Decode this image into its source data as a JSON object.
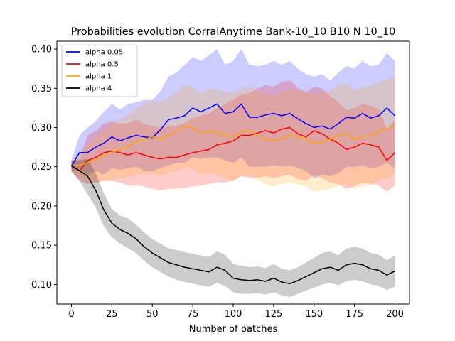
{
  "chart_data": {
    "type": "line",
    "title": "Probabilities evolution CorralAnytime Bank-10_10 B10 N 10_10",
    "xlabel": "Number of batches",
    "ylabel": "",
    "xlim": [
      -9,
      209
    ],
    "ylim": [
      0.075,
      0.41
    ],
    "xticks": [
      0,
      25,
      50,
      75,
      100,
      125,
      150,
      175,
      200
    ],
    "yticks": [
      0.1,
      0.15,
      0.2,
      0.25,
      0.3,
      0.35,
      0.4
    ],
    "xtick_labels": [
      "0",
      "25",
      "50",
      "75",
      "100",
      "125",
      "150",
      "175",
      "200"
    ],
    "ytick_labels": [
      "0.10",
      "0.15",
      "0.20",
      "0.25",
      "0.30",
      "0.35",
      "0.40"
    ],
    "legend_position": "top-left",
    "grid": false,
    "series": [
      {
        "name": "alpha 0.05",
        "color": "#0000ff",
        "fill": "rgba(0,0,255,0.2)",
        "x": [
          0,
          5,
          10,
          15,
          20,
          25,
          30,
          35,
          40,
          45,
          50,
          55,
          60,
          65,
          70,
          75,
          80,
          85,
          90,
          95,
          100,
          105,
          110,
          115,
          120,
          125,
          130,
          135,
          140,
          145,
          150,
          155,
          160,
          165,
          170,
          175,
          180,
          185,
          190,
          195,
          200
        ],
        "y": [
          0.251,
          0.268,
          0.268,
          0.275,
          0.28,
          0.288,
          0.283,
          0.287,
          0.29,
          0.288,
          0.287,
          0.297,
          0.31,
          0.312,
          0.315,
          0.325,
          0.32,
          0.325,
          0.33,
          0.318,
          0.32,
          0.33,
          0.313,
          0.313,
          0.316,
          0.318,
          0.315,
          0.318,
          0.311,
          0.305,
          0.3,
          0.302,
          0.298,
          0.305,
          0.313,
          0.312,
          0.318,
          0.312,
          0.315,
          0.325,
          0.315
        ],
        "lower": [
          0.244,
          0.248,
          0.24,
          0.245,
          0.24,
          0.248,
          0.246,
          0.248,
          0.25,
          0.245,
          0.245,
          0.248,
          0.252,
          0.255,
          0.255,
          0.262,
          0.26,
          0.262,
          0.262,
          0.258,
          0.255,
          0.262,
          0.25,
          0.25,
          0.25,
          0.252,
          0.25,
          0.252,
          0.248,
          0.245,
          0.235,
          0.24,
          0.238,
          0.242,
          0.25,
          0.25,
          0.252,
          0.248,
          0.25,
          0.255,
          0.248
        ],
        "upper": [
          0.258,
          0.29,
          0.3,
          0.308,
          0.32,
          0.33,
          0.323,
          0.33,
          0.332,
          0.335,
          0.335,
          0.346,
          0.365,
          0.37,
          0.38,
          0.39,
          0.385,
          0.392,
          0.4,
          0.38,
          0.385,
          0.4,
          0.38,
          0.378,
          0.38,
          0.385,
          0.38,
          0.385,
          0.375,
          0.368,
          0.365,
          0.368,
          0.36,
          0.37,
          0.378,
          0.375,
          0.385,
          0.378,
          0.38,
          0.395,
          0.385
        ]
      },
      {
        "name": "alpha 0.5",
        "color": "#ff0000",
        "fill": "rgba(255,0,0,0.2)",
        "x": [
          0,
          5,
          10,
          15,
          20,
          25,
          30,
          35,
          40,
          45,
          50,
          55,
          60,
          65,
          70,
          75,
          80,
          85,
          90,
          95,
          100,
          105,
          110,
          115,
          120,
          125,
          130,
          135,
          140,
          145,
          150,
          155,
          160,
          165,
          170,
          175,
          180,
          185,
          190,
          195,
          200
        ],
        "y": [
          0.251,
          0.245,
          0.258,
          0.262,
          0.268,
          0.27,
          0.268,
          0.265,
          0.268,
          0.265,
          0.262,
          0.26,
          0.262,
          0.262,
          0.265,
          0.268,
          0.27,
          0.272,
          0.278,
          0.28,
          0.283,
          0.29,
          0.29,
          0.293,
          0.296,
          0.293,
          0.298,
          0.3,
          0.292,
          0.288,
          0.296,
          0.292,
          0.285,
          0.28,
          0.272,
          0.275,
          0.28,
          0.278,
          0.275,
          0.258,
          0.268
        ],
        "lower": [
          0.244,
          0.232,
          0.228,
          0.23,
          0.232,
          0.232,
          0.23,
          0.226,
          0.226,
          0.225,
          0.222,
          0.22,
          0.222,
          0.222,
          0.223,
          0.225,
          0.226,
          0.228,
          0.23,
          0.23,
          0.232,
          0.238,
          0.236,
          0.236,
          0.238,
          0.235,
          0.238,
          0.24,
          0.234,
          0.232,
          0.24,
          0.235,
          0.23,
          0.228,
          0.222,
          0.225,
          0.23,
          0.228,
          0.226,
          0.218,
          0.226
        ],
        "upper": [
          0.258,
          0.26,
          0.29,
          0.296,
          0.305,
          0.308,
          0.305,
          0.305,
          0.31,
          0.305,
          0.302,
          0.3,
          0.302,
          0.302,
          0.306,
          0.312,
          0.315,
          0.318,
          0.325,
          0.33,
          0.335,
          0.342,
          0.344,
          0.35,
          0.354,
          0.352,
          0.358,
          0.36,
          0.35,
          0.345,
          0.352,
          0.35,
          0.34,
          0.332,
          0.322,
          0.325,
          0.33,
          0.328,
          0.324,
          0.298,
          0.31
        ]
      },
      {
        "name": "alpha 1",
        "color": "#ffa500",
        "fill": "rgba(255,165,0,0.2)",
        "x": [
          0,
          5,
          10,
          15,
          20,
          25,
          30,
          35,
          40,
          45,
          50,
          55,
          60,
          65,
          70,
          75,
          80,
          85,
          90,
          95,
          100,
          105,
          110,
          115,
          120,
          125,
          130,
          135,
          140,
          145,
          150,
          155,
          160,
          165,
          170,
          175,
          180,
          185,
          190,
          195,
          200
        ],
        "y": [
          0.251,
          0.252,
          0.255,
          0.258,
          0.265,
          0.268,
          0.272,
          0.276,
          0.282,
          0.285,
          0.288,
          0.285,
          0.29,
          0.295,
          0.302,
          0.3,
          0.292,
          0.296,
          0.294,
          0.29,
          0.288,
          0.294,
          0.296,
          0.29,
          0.285,
          0.283,
          0.286,
          0.29,
          0.288,
          0.285,
          0.28,
          0.282,
          0.285,
          0.29,
          0.292,
          0.285,
          0.288,
          0.29,
          0.295,
          0.298,
          0.302
        ],
        "lower": [
          0.244,
          0.238,
          0.232,
          0.23,
          0.232,
          0.232,
          0.235,
          0.236,
          0.24,
          0.24,
          0.242,
          0.238,
          0.242,
          0.245,
          0.25,
          0.248,
          0.24,
          0.242,
          0.24,
          0.235,
          0.232,
          0.238,
          0.24,
          0.233,
          0.228,
          0.225,
          0.228,
          0.23,
          0.228,
          0.225,
          0.218,
          0.22,
          0.222,
          0.226,
          0.228,
          0.222,
          0.225,
          0.227,
          0.232,
          0.235,
          0.24
        ],
        "upper": [
          0.258,
          0.266,
          0.278,
          0.286,
          0.298,
          0.304,
          0.31,
          0.316,
          0.324,
          0.33,
          0.334,
          0.332,
          0.338,
          0.345,
          0.354,
          0.352,
          0.344,
          0.35,
          0.348,
          0.345,
          0.344,
          0.35,
          0.352,
          0.347,
          0.342,
          0.341,
          0.344,
          0.35,
          0.348,
          0.345,
          0.342,
          0.344,
          0.348,
          0.354,
          0.356,
          0.348,
          0.351,
          0.353,
          0.358,
          0.361,
          0.364
        ]
      },
      {
        "name": "alpha 4",
        "color": "#000000",
        "fill": "rgba(0,0,0,0.2)",
        "x": [
          0,
          5,
          10,
          15,
          20,
          25,
          30,
          35,
          40,
          45,
          50,
          55,
          60,
          65,
          70,
          75,
          80,
          85,
          90,
          95,
          100,
          105,
          110,
          115,
          120,
          125,
          130,
          135,
          140,
          145,
          150,
          155,
          160,
          165,
          170,
          175,
          180,
          185,
          190,
          195,
          200
        ],
        "y": [
          0.251,
          0.245,
          0.238,
          0.22,
          0.195,
          0.178,
          0.17,
          0.165,
          0.158,
          0.148,
          0.14,
          0.134,
          0.128,
          0.125,
          0.122,
          0.12,
          0.118,
          0.116,
          0.122,
          0.118,
          0.108,
          0.106,
          0.105,
          0.106,
          0.104,
          0.108,
          0.103,
          0.101,
          0.105,
          0.11,
          0.115,
          0.12,
          0.122,
          0.118,
          0.125,
          0.127,
          0.125,
          0.12,
          0.118,
          0.112,
          0.117
        ],
        "lower": [
          0.244,
          0.232,
          0.215,
          0.198,
          0.174,
          0.16,
          0.152,
          0.146,
          0.14,
          0.13,
          0.122,
          0.116,
          0.11,
          0.106,
          0.103,
          0.101,
          0.099,
          0.097,
          0.102,
          0.098,
          0.09,
          0.088,
          0.088,
          0.089,
          0.087,
          0.09,
          0.086,
          0.084,
          0.088,
          0.092,
          0.096,
          0.1,
          0.102,
          0.099,
          0.104,
          0.106,
          0.104,
          0.1,
          0.098,
          0.093,
          0.097
        ],
        "upper": [
          0.258,
          0.258,
          0.26,
          0.242,
          0.216,
          0.196,
          0.188,
          0.184,
          0.176,
          0.166,
          0.158,
          0.152,
          0.146,
          0.144,
          0.141,
          0.139,
          0.137,
          0.135,
          0.142,
          0.138,
          0.126,
          0.124,
          0.122,
          0.123,
          0.121,
          0.126,
          0.12,
          0.118,
          0.122,
          0.128,
          0.134,
          0.14,
          0.142,
          0.137,
          0.146,
          0.148,
          0.146,
          0.14,
          0.138,
          0.131,
          0.137
        ]
      }
    ]
  }
}
